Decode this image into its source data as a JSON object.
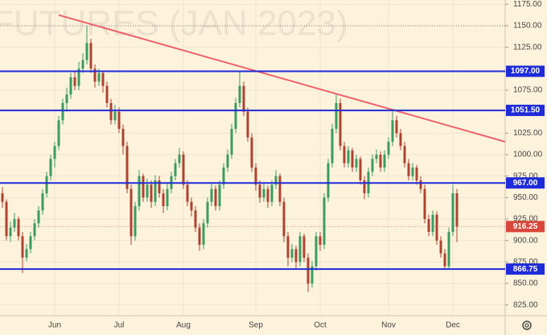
{
  "chart_data": {
    "type": "candlestick",
    "title": "FUTURES (JAN 2023)",
    "categories": [
      null,
      null,
      null,
      null,
      null,
      null,
      null,
      null,
      null,
      null,
      null,
      null,
      null,
      "Jun",
      null,
      null,
      null,
      null,
      null,
      null,
      null,
      null,
      null,
      null,
      null,
      null,
      null,
      null,
      null,
      "Jul",
      null,
      null,
      null,
      null,
      null,
      null,
      null,
      null,
      null,
      null,
      null,
      null,
      null,
      null,
      null,
      "Aug",
      null,
      null,
      null,
      null,
      null,
      null,
      null,
      null,
      null,
      null,
      null,
      null,
      null,
      null,
      null,
      null,
      null,
      "Sep",
      null,
      null,
      null,
      null,
      null,
      null,
      null,
      null,
      null,
      null,
      null,
      null,
      null,
      null,
      null,
      "Oct",
      null,
      null,
      null,
      null,
      null,
      null,
      null,
      null,
      null,
      null,
      null,
      null,
      null,
      null,
      null,
      null,
      "Nov",
      null,
      null,
      null,
      null,
      null,
      null,
      null,
      null,
      null,
      null,
      null,
      null,
      null,
      null,
      null,
      "Dec",
      null
    ],
    "ohlc": [
      [
        955,
        962,
        938,
        945
      ],
      [
        945,
        948,
        900,
        905
      ],
      [
        905,
        922,
        898,
        915
      ],
      [
        915,
        932,
        910,
        925
      ],
      [
        925,
        928,
        900,
        905
      ],
      [
        905,
        910,
        862,
        880
      ],
      [
        880,
        896,
        876,
        890
      ],
      [
        890,
        910,
        885,
        905
      ],
      [
        905,
        925,
        900,
        920
      ],
      [
        920,
        940,
        915,
        935
      ],
      [
        935,
        960,
        930,
        955
      ],
      [
        955,
        980,
        950,
        975
      ],
      [
        975,
        1000,
        970,
        995
      ],
      [
        995,
        1015,
        985,
        1010
      ],
      [
        1010,
        1045,
        1005,
        1040
      ],
      [
        1040,
        1065,
        1035,
        1060
      ],
      [
        1060,
        1078,
        1050,
        1070
      ],
      [
        1070,
        1095,
        1065,
        1090
      ],
      [
        1090,
        1098,
        1075,
        1080
      ],
      [
        1080,
        1108,
        1075,
        1100
      ],
      [
        1100,
        1118,
        1095,
        1110
      ],
      [
        1110,
        1150,
        1105,
        1130
      ],
      [
        1130,
        1135,
        1095,
        1100
      ],
      [
        1100,
        1105,
        1078,
        1085
      ],
      [
        1085,
        1100,
        1080,
        1095
      ],
      [
        1095,
        1098,
        1072,
        1080
      ],
      [
        1080,
        1085,
        1055,
        1060
      ],
      [
        1060,
        1065,
        1035,
        1040
      ],
      [
        1040,
        1058,
        1035,
        1050
      ],
      [
        1050,
        1055,
        1025,
        1030
      ],
      [
        1030,
        1035,
        1000,
        1010
      ],
      [
        1010,
        1015,
        955,
        960
      ],
      [
        960,
        965,
        895,
        905
      ],
      [
        905,
        945,
        900,
        940
      ],
      [
        940,
        982,
        935,
        975
      ],
      [
        975,
        978,
        945,
        950
      ],
      [
        950,
        972,
        945,
        965
      ],
      [
        965,
        970,
        938,
        945
      ],
      [
        945,
        976,
        940,
        970
      ],
      [
        970,
        975,
        950,
        955
      ],
      [
        955,
        960,
        932,
        940
      ],
      [
        940,
        966,
        935,
        960
      ],
      [
        960,
        980,
        955,
        975
      ],
      [
        975,
        995,
        970,
        990
      ],
      [
        990,
        1008,
        985,
        1000
      ],
      [
        1000,
        1004,
        960,
        965
      ],
      [
        965,
        970,
        940,
        945
      ],
      [
        945,
        950,
        928,
        935
      ],
      [
        935,
        940,
        910,
        915
      ],
      [
        915,
        920,
        888,
        895
      ],
      [
        895,
        925,
        890,
        920
      ],
      [
        920,
        950,
        915,
        945
      ],
      [
        945,
        966,
        940,
        960
      ],
      [
        960,
        964,
        935,
        940
      ],
      [
        940,
        970,
        935,
        965
      ],
      [
        965,
        990,
        960,
        985
      ],
      [
        985,
        1006,
        980,
        1000
      ],
      [
        1000,
        1036,
        995,
        1030
      ],
      [
        1030,
        1066,
        1025,
        1060
      ],
      [
        1060,
        1097,
        1055,
        1080
      ],
      [
        1080,
        1085,
        1045,
        1050
      ],
      [
        1050,
        1055,
        1015,
        1020
      ],
      [
        1020,
        1025,
        980,
        985
      ],
      [
        985,
        990,
        958,
        965
      ],
      [
        965,
        970,
        944,
        950
      ],
      [
        950,
        966,
        945,
        960
      ],
      [
        960,
        964,
        938,
        945
      ],
      [
        945,
        970,
        940,
        965
      ],
      [
        965,
        982,
        960,
        975
      ],
      [
        975,
        978,
        940,
        945
      ],
      [
        945,
        950,
        898,
        905
      ],
      [
        905,
        910,
        870,
        880
      ],
      [
        880,
        896,
        875,
        890
      ],
      [
        890,
        894,
        868,
        875
      ],
      [
        875,
        910,
        870,
        905
      ],
      [
        905,
        908,
        875,
        880
      ],
      [
        880,
        885,
        840,
        850
      ],
      [
        850,
        876,
        845,
        870
      ],
      [
        870,
        910,
        865,
        905
      ],
      [
        905,
        910,
        888,
        895
      ],
      [
        895,
        955,
        890,
        950
      ],
      [
        950,
        995,
        945,
        990
      ],
      [
        990,
        1036,
        985,
        1030
      ],
      [
        1030,
        1070,
        1025,
        1060
      ],
      [
        1060,
        1065,
        1005,
        1010
      ],
      [
        1010,
        1015,
        985,
        990
      ],
      [
        990,
        1010,
        985,
        1005
      ],
      [
        1005,
        1008,
        980,
        985
      ],
      [
        985,
        1000,
        980,
        995
      ],
      [
        995,
        998,
        965,
        970
      ],
      [
        970,
        975,
        948,
        955
      ],
      [
        955,
        985,
        950,
        980
      ],
      [
        980,
        1000,
        975,
        995
      ],
      [
        995,
        1006,
        990,
        1000
      ],
      [
        1000,
        1004,
        980,
        985
      ],
      [
        985,
        1005,
        980,
        1000
      ],
      [
        1000,
        1020,
        995,
        1015
      ],
      [
        1015,
        1052,
        1010,
        1040
      ],
      [
        1040,
        1045,
        1020,
        1025
      ],
      [
        1025,
        1030,
        1005,
        1010
      ],
      [
        1010,
        1015,
        985,
        990
      ],
      [
        990,
        995,
        970,
        975
      ],
      [
        975,
        990,
        970,
        985
      ],
      [
        985,
        988,
        965,
        970
      ],
      [
        970,
        975,
        955,
        960
      ],
      [
        960,
        965,
        920,
        925
      ],
      [
        925,
        930,
        905,
        910
      ],
      [
        910,
        935,
        905,
        930
      ],
      [
        930,
        934,
        895,
        900
      ],
      [
        900,
        905,
        880,
        885
      ],
      [
        885,
        890,
        866,
        870
      ],
      [
        870,
        915,
        866,
        910
      ],
      [
        910,
        965,
        905,
        955
      ],
      [
        955,
        960,
        898,
        916.25
      ]
    ],
    "up_color": "#3c9b5f",
    "down_color": "#ad4330",
    "ylim": [
      812.5,
      1180
    ],
    "yticks": [
      {
        "value": 1175,
        "label": "1175.00"
      },
      {
        "value": 1150,
        "label": "1150.00"
      },
      {
        "value": 1125,
        "label": "1125.00"
      },
      {
        "value": 1075,
        "label": "1075.00"
      },
      {
        "value": 1025,
        "label": "1025.00"
      },
      {
        "value": 1000,
        "label": "1000.00"
      },
      {
        "value": 975,
        "label": "975.00"
      },
      {
        "value": 950,
        "label": "950.00"
      },
      {
        "value": 925,
        "label": "925.00"
      },
      {
        "value": 900,
        "label": "900.00"
      },
      {
        "value": 875,
        "label": "875.00"
      },
      {
        "value": 850,
        "label": "850.00"
      },
      {
        "value": 825,
        "label": "825.00"
      }
    ],
    "grid": true,
    "levels": {
      "color": "#1f2bd8",
      "values": [
        1097,
        1051.5,
        967,
        866.75
      ],
      "value_labels": [
        "1097.00",
        "1051.50",
        "967.00",
        "866.75"
      ]
    },
    "reference_line": 1150,
    "trendline": {
      "color": "#f0606a",
      "values": [
        1162.5,
        1015
      ]
    },
    "last_price": {
      "value": 916.25,
      "color": "#d9473a"
    }
  }
}
